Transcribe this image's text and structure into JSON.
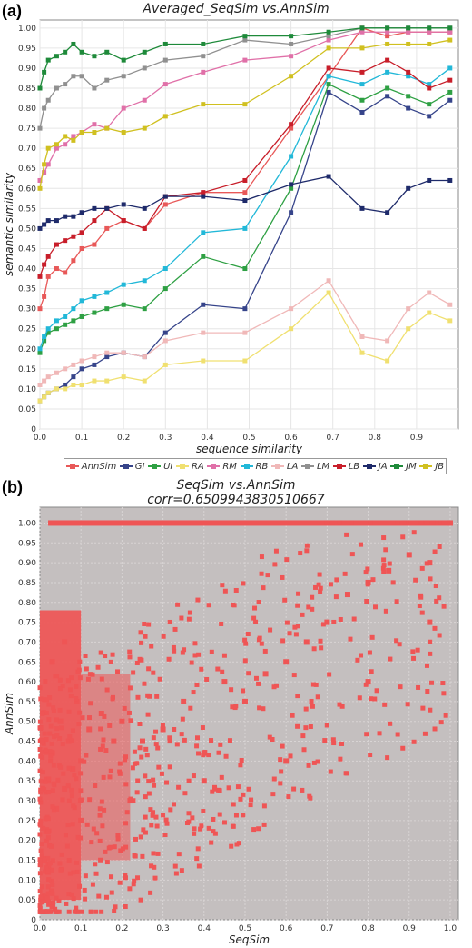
{
  "panel_a": {
    "label": "(a)",
    "chart_data": {
      "type": "line",
      "title": "Averaged_SeqSim vs.AnnSim",
      "xlabel": "sequence similarity",
      "ylabel": "semantic similarity",
      "xlim": [
        0.0,
        1.0
      ],
      "ylim": [
        0.0,
        1.02
      ],
      "x_ticks": [
        "0.0",
        "0.1",
        "0.2",
        "0.3",
        "0.4",
        "0.5",
        "0.6",
        "0.7",
        "0.8",
        "0.9"
      ],
      "y_ticks": [
        "0",
        "0.05",
        "0.10",
        "0.15",
        "0.20",
        "0.25",
        "0.30",
        "0.35",
        "0.40",
        "0.45",
        "0.50",
        "0.55",
        "0.60",
        "0.65",
        "0.70",
        "0.75",
        "0.80",
        "0.85",
        "0.90",
        "0.95",
        "1.00"
      ],
      "x": [
        0.0,
        0.01,
        0.02,
        0.04,
        0.06,
        0.08,
        0.1,
        0.13,
        0.16,
        0.2,
        0.25,
        0.3,
        0.39,
        0.49,
        0.6,
        0.69,
        0.77,
        0.83,
        0.88,
        0.93,
        0.98
      ],
      "series": [
        {
          "name": "AnnSim",
          "color": "#e85858",
          "values": [
            0.3,
            0.33,
            0.38,
            0.4,
            0.39,
            0.42,
            0.45,
            0.46,
            0.5,
            0.52,
            0.5,
            0.56,
            0.59,
            0.59,
            0.75,
            0.88,
            1.0,
            0.98,
            0.99,
            0.99,
            0.99
          ]
        },
        {
          "name": "GI",
          "color": "#36448a",
          "values": [
            0.07,
            0.08,
            0.09,
            0.1,
            0.11,
            0.13,
            0.15,
            0.16,
            0.18,
            0.19,
            0.18,
            0.24,
            0.31,
            0.3,
            0.54,
            0.84,
            0.79,
            0.83,
            0.8,
            0.78,
            0.82
          ]
        },
        {
          "name": "UI",
          "color": "#2ea043",
          "values": [
            0.19,
            0.22,
            0.24,
            0.25,
            0.26,
            0.27,
            0.28,
            0.29,
            0.3,
            0.31,
            0.3,
            0.35,
            0.43,
            0.4,
            0.6,
            0.86,
            0.82,
            0.85,
            0.83,
            0.81,
            0.84
          ]
        },
        {
          "name": "RA",
          "color": "#f0e070",
          "values": [
            0.07,
            0.08,
            0.09,
            0.1,
            0.1,
            0.11,
            0.11,
            0.12,
            0.12,
            0.13,
            0.12,
            0.16,
            0.17,
            0.17,
            0.25,
            0.34,
            0.19,
            0.17,
            0.25,
            0.29,
            0.27
          ]
        },
        {
          "name": "RM",
          "color": "#e070a8",
          "values": [
            0.62,
            0.64,
            0.66,
            0.7,
            0.71,
            0.73,
            0.74,
            0.76,
            0.75,
            0.8,
            0.82,
            0.86,
            0.89,
            0.92,
            0.93,
            0.97,
            0.99,
            0.99,
            0.99,
            0.99,
            0.99
          ]
        },
        {
          "name": "RB",
          "color": "#22b8d8",
          "values": [
            0.2,
            0.23,
            0.25,
            0.27,
            0.28,
            0.3,
            0.32,
            0.33,
            0.34,
            0.36,
            0.37,
            0.4,
            0.49,
            0.5,
            0.68,
            0.88,
            0.86,
            0.89,
            0.88,
            0.86,
            0.9
          ]
        },
        {
          "name": "LA",
          "color": "#f0b8b8",
          "values": [
            0.11,
            0.12,
            0.13,
            0.14,
            0.15,
            0.16,
            0.17,
            0.18,
            0.19,
            0.19,
            0.18,
            0.22,
            0.24,
            0.24,
            0.3,
            0.37,
            0.23,
            0.22,
            0.3,
            0.34,
            0.31
          ]
        },
        {
          "name": "LM",
          "color": "#909090",
          "values": [
            0.75,
            0.8,
            0.82,
            0.85,
            0.86,
            0.88,
            0.88,
            0.85,
            0.87,
            0.88,
            0.9,
            0.92,
            0.93,
            0.97,
            0.96,
            0.98,
            1.0,
            1.0,
            1.0,
            1.0,
            1.0
          ]
        },
        {
          "name": "LB",
          "color": "#c81e2a",
          "values": [
            0.38,
            0.41,
            0.43,
            0.46,
            0.47,
            0.48,
            0.49,
            0.52,
            0.55,
            0.52,
            0.5,
            0.58,
            0.59,
            0.62,
            0.76,
            0.9,
            0.89,
            0.92,
            0.89,
            0.85,
            0.87
          ]
        },
        {
          "name": "JA",
          "color": "#1e2a6a",
          "values": [
            0.5,
            0.51,
            0.52,
            0.52,
            0.53,
            0.53,
            0.54,
            0.55,
            0.55,
            0.56,
            0.55,
            0.58,
            0.58,
            0.57,
            0.61,
            0.63,
            0.55,
            0.54,
            0.6,
            0.62,
            0.62
          ]
        },
        {
          "name": "JM",
          "color": "#1e8a3a",
          "values": [
            0.85,
            0.89,
            0.92,
            0.93,
            0.94,
            0.96,
            0.94,
            0.93,
            0.94,
            0.92,
            0.94,
            0.96,
            0.96,
            0.98,
            0.98,
            0.99,
            1.0,
            1.0,
            1.0,
            1.0,
            1.0
          ]
        },
        {
          "name": "JB",
          "color": "#d0c020",
          "values": [
            0.6,
            0.66,
            0.7,
            0.71,
            0.73,
            0.72,
            0.74,
            0.74,
            0.75,
            0.74,
            0.75,
            0.78,
            0.81,
            0.81,
            0.88,
            0.95,
            0.95,
            0.96,
            0.96,
            0.96,
            0.97
          ]
        }
      ]
    }
  },
  "panel_b": {
    "label": "(b)",
    "title_line1": "SeqSim vs.AnnSim",
    "title_line2": "corr=0.6509943830510667",
    "chart_data": {
      "type": "scatter",
      "title": "SeqSim vs.AnnSim",
      "subtitle": "corr=0.6509943830510667",
      "xlabel": "SeqSim",
      "ylabel": "AnnSim",
      "xlim": [
        0.0,
        1.02
      ],
      "ylim": [
        0.0,
        1.04
      ],
      "x_ticks": [
        "0.0",
        "0.1",
        "0.2",
        "0.3",
        "0.4",
        "0.5",
        "0.6",
        "0.7",
        "0.8",
        "0.9",
        "1.0"
      ],
      "y_ticks": [
        "0",
        "0.05",
        "0.10",
        "0.15",
        "0.20",
        "0.25",
        "0.30",
        "0.35",
        "0.40",
        "0.45",
        "0.50",
        "0.55",
        "0.60",
        "0.65",
        "0.70",
        "0.75",
        "0.80",
        "0.85",
        "0.90",
        "0.95",
        "1.00"
      ],
      "series": [
        {
          "name": "",
          "color": "#ef5555",
          "points": [
            [
              0.02,
              0.35
            ],
            [
              0.03,
              0.42
            ],
            [
              0.04,
              0.28
            ],
            [
              0.05,
              0.5
            ],
            [
              0.06,
              0.33
            ],
            [
              0.07,
              0.45
            ],
            [
              0.08,
              0.38
            ],
            [
              0.09,
              0.55
            ],
            [
              0.1,
              0.4
            ],
            [
              0.12,
              0.48
            ],
            [
              0.15,
              0.52
            ],
            [
              0.18,
              0.45
            ],
            [
              0.2,
              0.5
            ],
            [
              0.25,
              0.45
            ],
            [
              0.3,
              0.48
            ],
            [
              0.35,
              0.55
            ],
            [
              0.4,
              0.42
            ],
            [
              0.45,
              0.6
            ],
            [
              0.5,
              0.55
            ],
            [
              0.55,
              0.62
            ],
            [
              0.6,
              0.65
            ],
            [
              0.65,
              0.7
            ],
            [
              0.7,
              0.75
            ],
            [
              0.75,
              0.82
            ],
            [
              0.8,
              0.85
            ],
            [
              0.85,
              0.88
            ],
            [
              0.9,
              0.92
            ],
            [
              0.95,
              0.9
            ],
            [
              1.0,
              1.0
            ],
            [
              0.02,
              0.12
            ],
            [
              0.01,
              0.05
            ],
            [
              0.03,
              0.65
            ],
            [
              0.06,
              0.7
            ],
            [
              0.1,
              0.25
            ],
            [
              0.22,
              0.3
            ],
            [
              0.4,
              0.35
            ],
            [
              0.6,
              0.4
            ],
            [
              0.8,
              0.6
            ],
            [
              0.95,
              0.75
            ]
          ]
        }
      ]
    }
  }
}
